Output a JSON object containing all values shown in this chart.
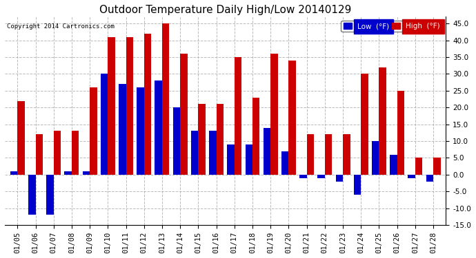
{
  "title": "Outdoor Temperature Daily High/Low 20140129",
  "copyright": "Copyright 2014 Cartronics.com",
  "legend_low": "Low  (°F)",
  "legend_high": "High  (°F)",
  "dates": [
    "01/05",
    "01/06",
    "01/07",
    "01/08",
    "01/09",
    "01/10",
    "01/11",
    "01/12",
    "01/13",
    "01/14",
    "01/15",
    "01/16",
    "01/17",
    "01/18",
    "01/19",
    "01/20",
    "01/21",
    "01/22",
    "01/23",
    "01/24",
    "01/25",
    "01/26",
    "01/27",
    "01/28"
  ],
  "highs": [
    22,
    12,
    13,
    13,
    26,
    41,
    41,
    42,
    45,
    36,
    21,
    21,
    35,
    23,
    36,
    34,
    12,
    12,
    12,
    30,
    32,
    25,
    5,
    5
  ],
  "lows": [
    1,
    -12,
    -12,
    1,
    1,
    30,
    27,
    26,
    28,
    20,
    13,
    13,
    9,
    9,
    14,
    7,
    -1,
    -1,
    -2,
    -6,
    10,
    6,
    -1,
    -2
  ],
  "ylim": [
    -15,
    47
  ],
  "yticks": [
    -15,
    -10,
    -5,
    0,
    5,
    10,
    15,
    20,
    25,
    30,
    35,
    40,
    45
  ],
  "bar_width": 0.4,
  "low_color": "#0000cc",
  "high_color": "#cc0000",
  "background_color": "#ffffff",
  "grid_color": "#aaaaaa",
  "title_fontsize": 11,
  "tick_fontsize": 7.5,
  "figwidth": 6.9,
  "figheight": 3.75,
  "dpi": 100
}
